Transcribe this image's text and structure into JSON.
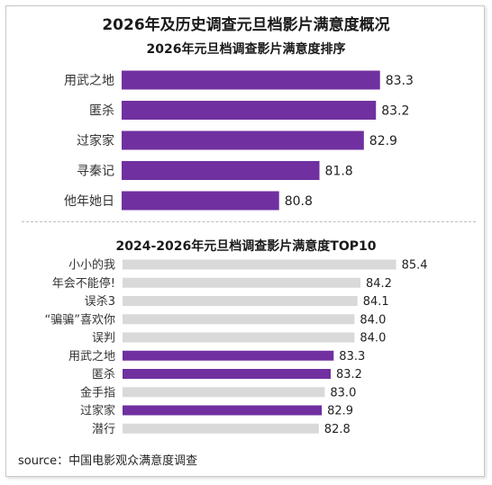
{
  "title": "2026年及历史调查元旦档影片满意度概况",
  "source": "source：中国电影观众满意度调查",
  "colors": {
    "highlight": "#7030a0",
    "neutral": "#d9d9d9"
  },
  "chart_data": [
    {
      "type": "bar",
      "orientation": "horizontal",
      "title": "2026年元旦档调查影片满意度排序",
      "categories": [
        "用武之地",
        "匿杀",
        "过家家",
        "寻秦记",
        "他年她日"
      ],
      "values": [
        83.3,
        83.2,
        82.9,
        81.8,
        80.8
      ],
      "highlight": [
        true,
        true,
        true,
        true,
        true
      ]
    },
    {
      "type": "bar",
      "orientation": "horizontal",
      "title": "2024-2026年元旦档调查影片满意度TOP10",
      "categories": [
        "小小的我",
        "年会不能停!",
        "误杀3",
        "“骗骗”喜欢你",
        "误判",
        "用武之地",
        "匿杀",
        "金手指",
        "过家家",
        "潜行"
      ],
      "values": [
        85.4,
        84.2,
        84.1,
        84.0,
        84.0,
        83.3,
        83.2,
        83.0,
        82.9,
        82.8
      ],
      "highlight": [
        false,
        false,
        false,
        false,
        false,
        true,
        true,
        false,
        true,
        false
      ]
    }
  ]
}
